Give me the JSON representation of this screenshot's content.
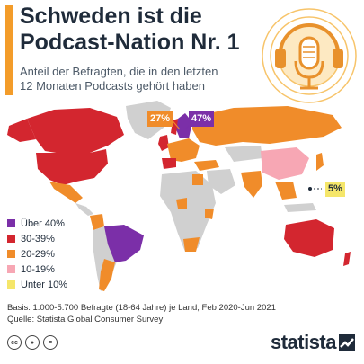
{
  "header": {
    "title_line1": "Schweden ist die",
    "title_line2": "Podcast-Nation Nr. 1",
    "subtitle_line1": "Anteil der Befragten, die in den letzten",
    "subtitle_line2": "12 Monaten Podcasts gehört haben"
  },
  "chart_data": {
    "type": "choropleth-map",
    "title": "Schweden ist die Podcast-Nation Nr. 1",
    "subtitle": "Anteil der Befragten, die in den letzten 12 Monaten Podcasts gehört haben",
    "categories": [
      {
        "label": "Über 40%",
        "color": "#7b2fa8"
      },
      {
        "label": "30-39%",
        "color": "#d3262f"
      },
      {
        "label": "20-29%",
        "color": "#f08c2a"
      },
      {
        "label": "10-19%",
        "color": "#f7a7b4"
      },
      {
        "label": "Unter 10%",
        "color": "#f5e66a"
      }
    ],
    "no_data_color": "#d0d0d0",
    "callouts": [
      {
        "value": "27%",
        "color": "#f08c2a"
      },
      {
        "value": "47%",
        "color": "#7b2fa8"
      },
      {
        "value": "5%",
        "color": "#f5e66a"
      }
    ]
  },
  "footer": {
    "basis": "Basis: 1.000-5.700 Befragte (18-64 Jahre) je Land; Feb 2020-Jun 2021",
    "source": "Quelle: Statista Global Consumer Survey"
  },
  "logo": {
    "text": "statista"
  },
  "icons": [
    "podcast-microphone-icon",
    "headphones-icon",
    "creative-commons-icon",
    "attribution-icon",
    "no-derivatives-icon",
    "statista-logo-icon"
  ]
}
